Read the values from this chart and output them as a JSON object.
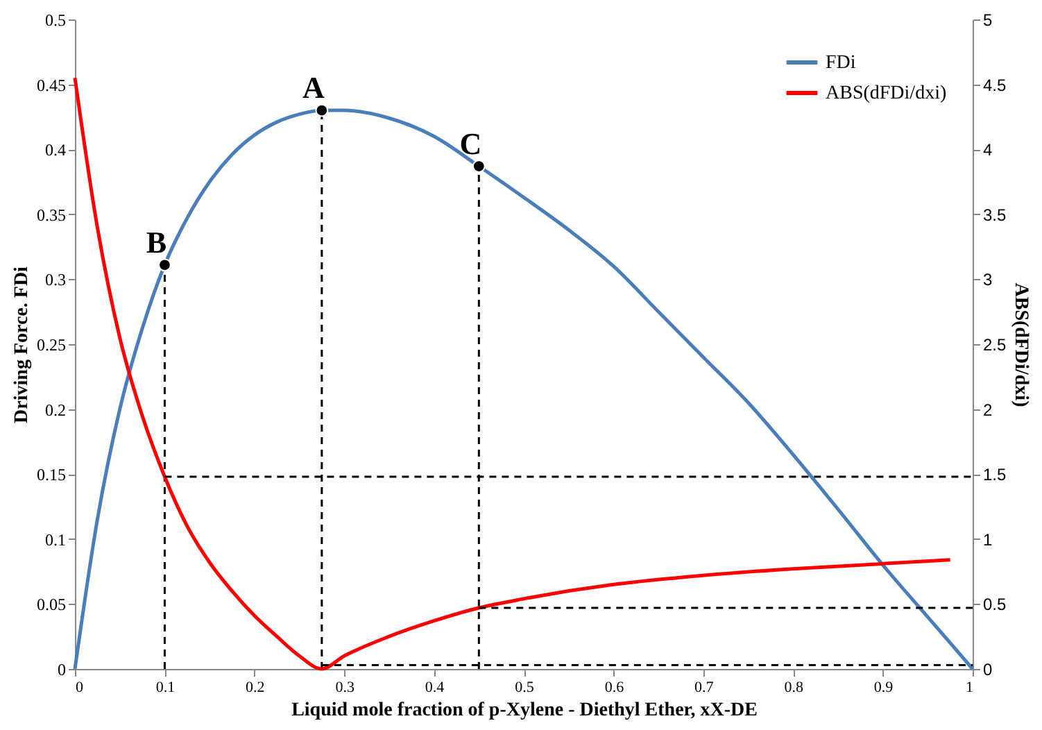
{
  "chart_data": {
    "type": "line",
    "xlabel": "Liquid mole fraction of p-Xylene - Diethyl Ether, xX-DE",
    "ylabel": "Driving Force. FDi",
    "y2label": "ABS(dFDi/dxi)",
    "xlim": [
      0,
      1
    ],
    "xticks": [
      0,
      0.1,
      0.2,
      0.3,
      0.4,
      0.5,
      0.6,
      0.7,
      0.8,
      0.9,
      1
    ],
    "ylim": [
      0,
      0.5
    ],
    "yticks": [
      0,
      0.05,
      0.1,
      0.15,
      0.2,
      0.25,
      0.3,
      0.35,
      0.4,
      0.45,
      0.5
    ],
    "y2lim": [
      0,
      5
    ],
    "y2ticks": [
      0,
      0.5,
      1,
      1.5,
      2,
      2.5,
      3,
      3.5,
      4,
      4.5,
      5
    ],
    "grid": false,
    "legend": "top right",
    "series": [
      {
        "name": "FDi",
        "color": "#4a7ebb",
        "axis": "y",
        "line_style": "solid",
        "x": [
          0,
          0.025,
          0.05,
          0.075,
          0.1,
          0.125,
          0.15,
          0.175,
          0.2,
          0.225,
          0.25,
          0.275,
          0.3,
          0.35,
          0.4,
          0.45,
          0.5,
          0.55,
          0.6,
          0.65,
          0.7,
          0.75,
          0.8,
          0.85,
          0.9,
          0.95,
          1
        ],
        "values": [
          0,
          0.115,
          0.2,
          0.262,
          0.311,
          0.347,
          0.375,
          0.396,
          0.411,
          0.421,
          0.427,
          0.43,
          0.43,
          0.424,
          0.41,
          0.387,
          0.363,
          0.338,
          0.31,
          0.275,
          0.24,
          0.205,
          0.165,
          0.123,
          0.08,
          0.04,
          0
        ]
      },
      {
        "name": "ABS(dFDi/dxi)",
        "color": "#ff0000",
        "axis": "y2",
        "line_style": "solid",
        "x": [
          0,
          0.025,
          0.05,
          0.075,
          0.1,
          0.125,
          0.15,
          0.175,
          0.2,
          0.225,
          0.25,
          0.275,
          0.3,
          0.35,
          0.4,
          0.45,
          0.5,
          0.6,
          0.7,
          0.8,
          0.9,
          0.975
        ],
        "values": [
          4.55,
          3.4,
          2.55,
          1.95,
          1.48,
          1.1,
          0.82,
          0.6,
          0.41,
          0.25,
          0.1,
          0,
          0.1,
          0.25,
          0.37,
          0.47,
          0.54,
          0.65,
          0.72,
          0.77,
          0.81,
          0.84
        ]
      },
      {
        "type": "line",
        "color": "#000000",
        "axis": "y",
        "line_style": "dashed",
        "x": [
          0.1,
          0.1
        ],
        "values": [
          0,
          0.311
        ]
      },
      {
        "type": "line",
        "color": "#000000",
        "axis": "y",
        "line_style": "dashed",
        "x": [
          0.275,
          0.275
        ],
        "values": [
          0,
          0.43
        ]
      },
      {
        "type": "line",
        "color": "#000000",
        "axis": "y",
        "line_style": "dashed",
        "x": [
          0.45,
          0.45
        ],
        "values": [
          0,
          0.387
        ]
      },
      {
        "type": "line",
        "color": "#000000",
        "axis": "y2",
        "line_style": "dashed",
        "x": [
          0.1,
          1
        ],
        "values": [
          1.48,
          1.48
        ]
      },
      {
        "type": "line",
        "color": "#000000",
        "axis": "y2",
        "line_style": "dashed",
        "x": [
          0.45,
          1
        ],
        "values": [
          0.47,
          0.47
        ]
      },
      {
        "type": "line",
        "color": "#000000",
        "axis": "y2",
        "line_style": "dashed",
        "x": [
          0.275,
          1
        ],
        "values": [
          0.03,
          0.03
        ]
      },
      {
        "type": "scatter",
        "color": "#000000",
        "axis": "y",
        "marker": "circle",
        "x": [
          0.1,
          0.275,
          0.45
        ],
        "values": [
          0.311,
          0.43,
          0.387
        ]
      }
    ],
    "annotations": [
      {
        "text": "B",
        "x": 0.1,
        "y": 0.311
      },
      {
        "text": "A",
        "x": 0.275,
        "y": 0.43
      },
      {
        "text": "C",
        "x": 0.45,
        "y": 0.387
      }
    ]
  }
}
